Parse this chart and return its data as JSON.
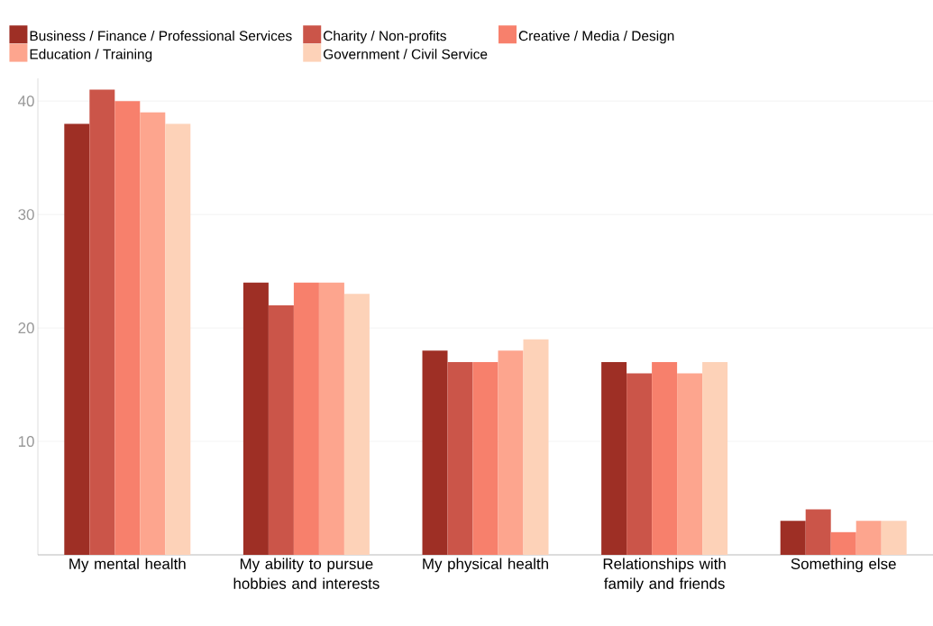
{
  "chart_data": {
    "type": "bar",
    "categories": [
      "My mental health",
      "My ability to pursue hobbies and interests",
      "My physical health",
      "Relationships with family and friends",
      "Something else"
    ],
    "series": [
      {
        "name": "Business / Finance / Professional Services",
        "color": "#9e2f25",
        "values": [
          38,
          24,
          18,
          17,
          3
        ]
      },
      {
        "name": "Charity / Non-profits",
        "color": "#cb5549",
        "values": [
          41,
          22,
          17,
          16,
          4
        ]
      },
      {
        "name": "Creative / Media / Design",
        "color": "#f7806c",
        "values": [
          40,
          24,
          17,
          17,
          2
        ]
      },
      {
        "name": "Education / Training",
        "color": "#fda58e",
        "values": [
          39,
          24,
          18,
          16,
          3
        ]
      },
      {
        "name": "Government / Civil Service",
        "color": "#fdd2b8",
        "values": [
          38,
          23,
          19,
          17,
          3
        ]
      }
    ],
    "ylim": [
      0,
      42
    ],
    "yticks": [
      10,
      20,
      30,
      40
    ],
    "grid": "y",
    "legend": "top"
  }
}
